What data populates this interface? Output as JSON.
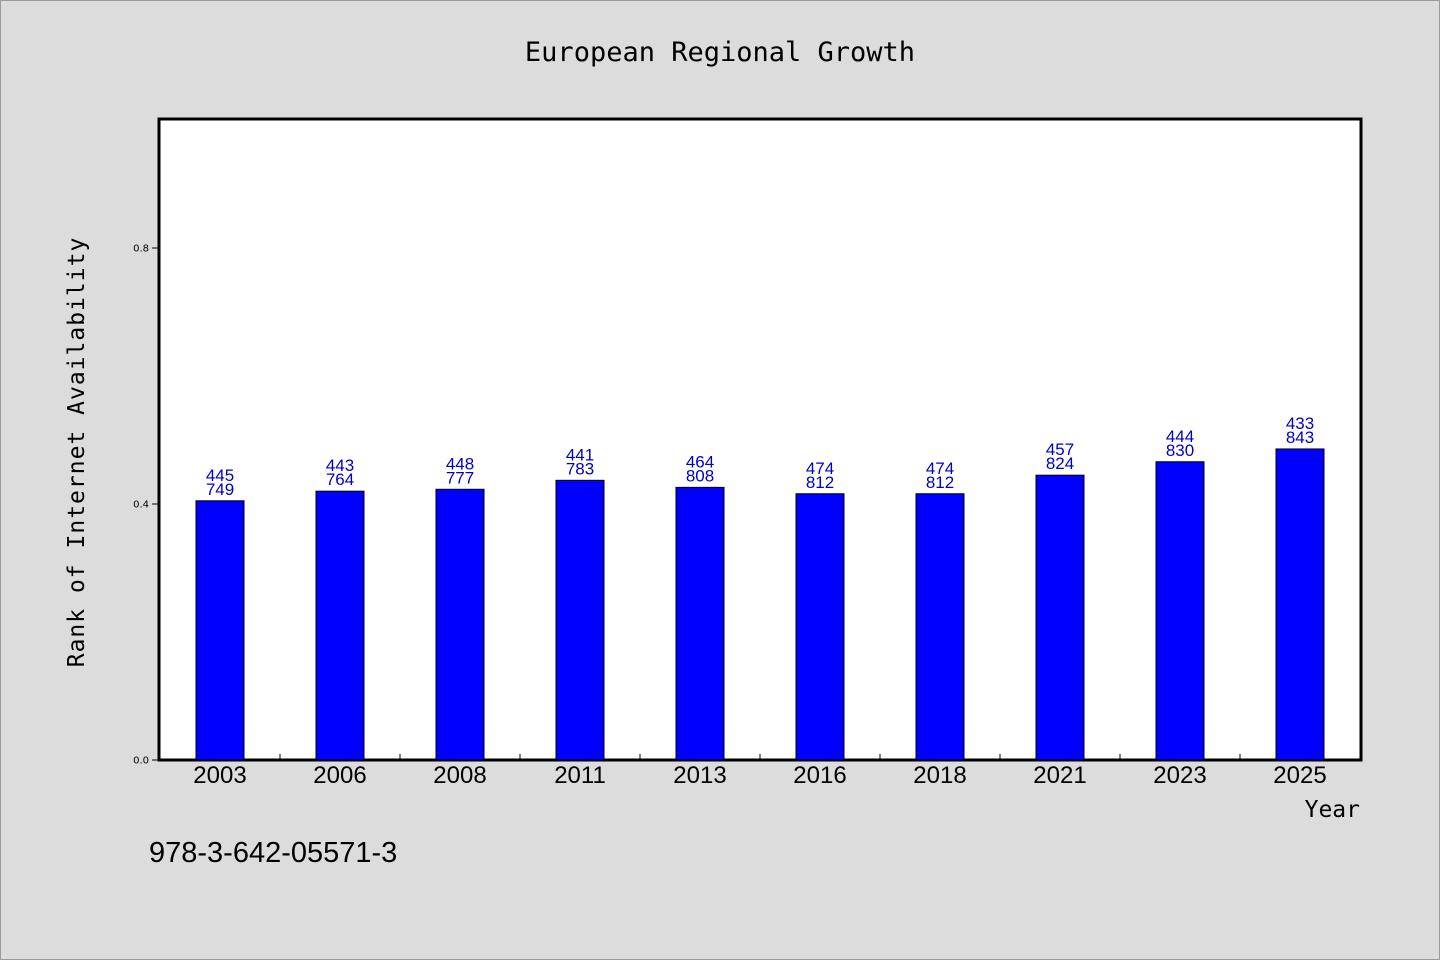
{
  "chart_data": {
    "type": "bar",
    "title": "European Regional Growth",
    "xlabel": "Year",
    "ylabel": "Rank of Internet Availability",
    "categories": [
      "2003",
      "2006",
      "2008",
      "2011",
      "2013",
      "2016",
      "2018",
      "2021",
      "2023",
      "2025"
    ],
    "values": [
      0.405,
      0.42,
      0.423,
      0.437,
      0.426,
      0.416,
      0.416,
      0.445,
      0.466,
      0.486
    ],
    "data_labels": [
      [
        "445",
        "749"
      ],
      [
        "443",
        "764"
      ],
      [
        "448",
        "777"
      ],
      [
        "441",
        "783"
      ],
      [
        "464",
        "808"
      ],
      [
        "474",
        "812"
      ],
      [
        "474",
        "812"
      ],
      [
        "457",
        "824"
      ],
      [
        "444",
        "830"
      ],
      [
        "433",
        "843"
      ]
    ],
    "ylim": [
      0,
      1.0
    ],
    "yticks": [
      "0.0",
      "0.4",
      "0.8"
    ],
    "ytick_values": [
      0,
      0.4,
      0.8
    ],
    "grid": false,
    "legend": "none",
    "bar_color": "#0000ff",
    "label_color": "#0000cc",
    "background": "#dcdcdc",
    "plot_background": "#ffffff"
  },
  "footer_text": "978-3-642-05571-3"
}
